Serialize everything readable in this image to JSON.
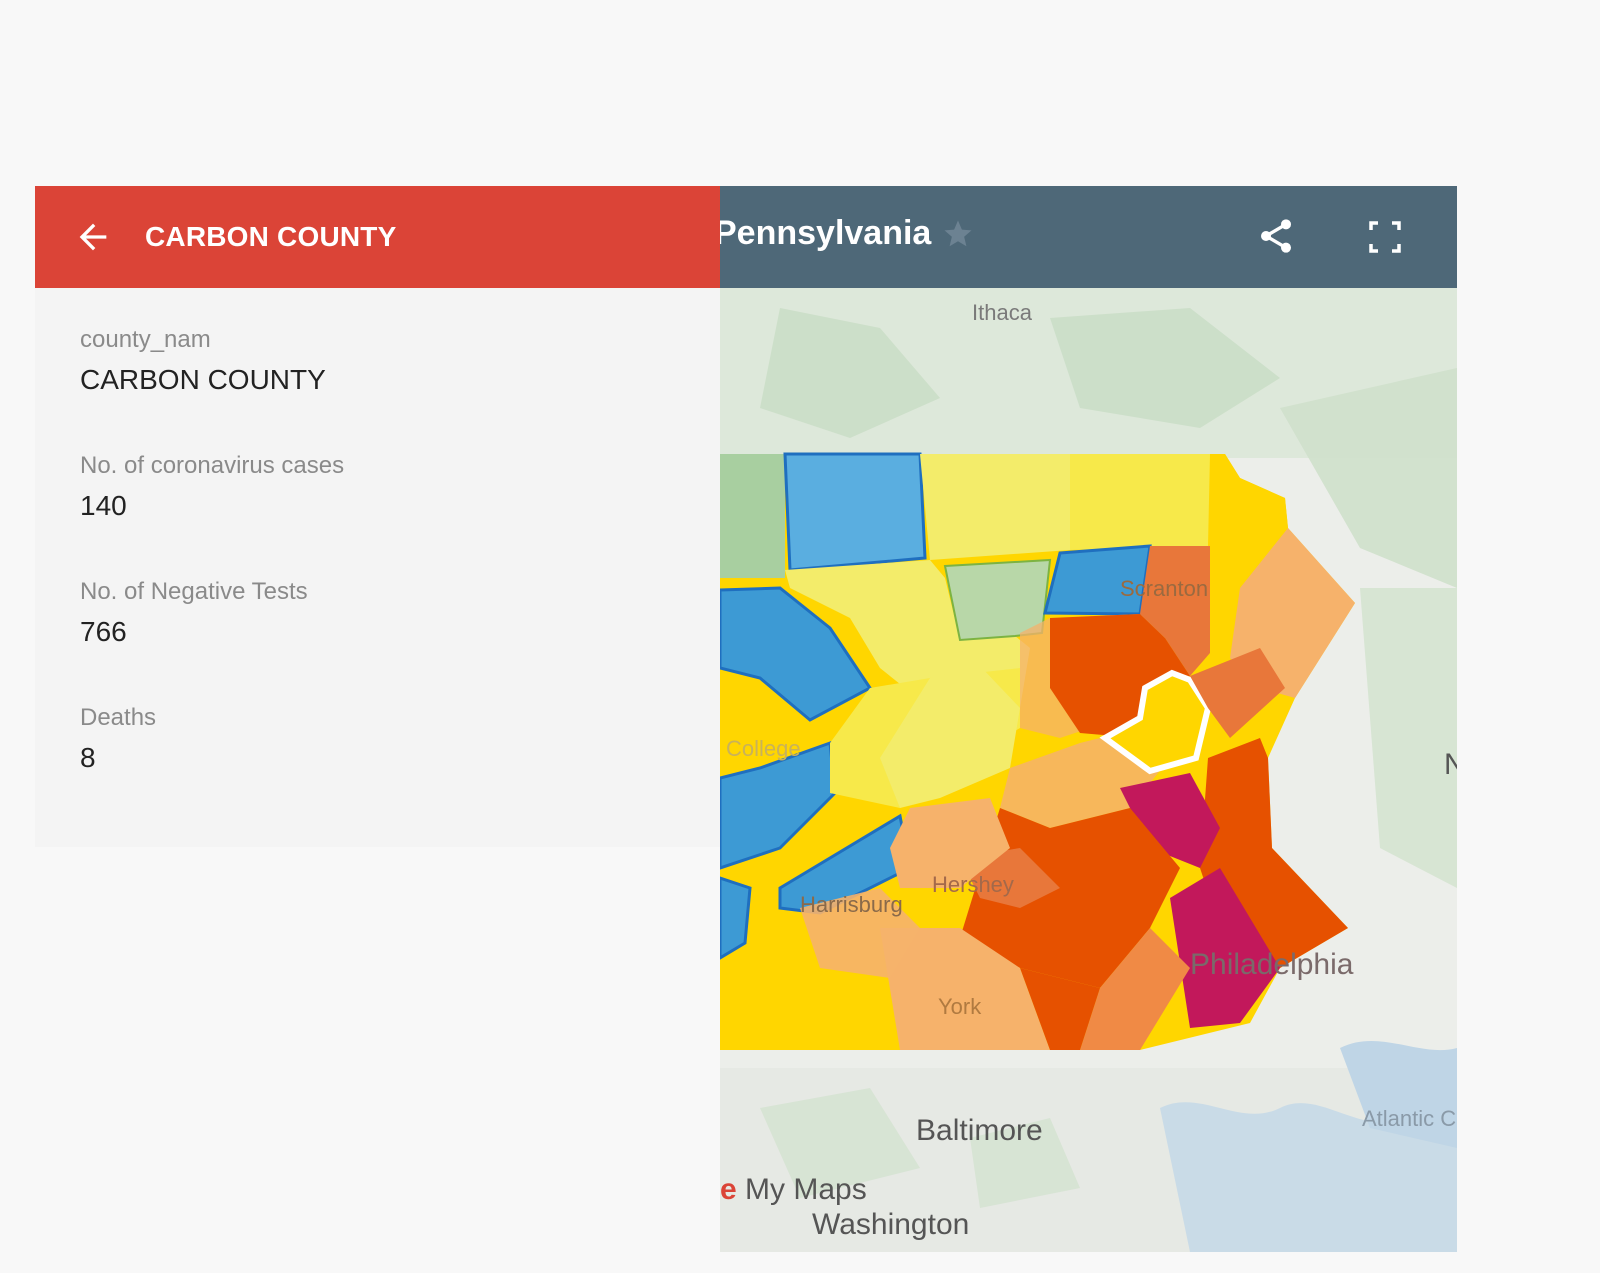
{
  "info_panel": {
    "title": "CARBON COUNTY",
    "fields": [
      {
        "label": "county_nam",
        "value": "CARBON COUNTY"
      },
      {
        "label": "No. of coronavirus cases",
        "value": "140"
      },
      {
        "label": "No. of Negative Tests",
        "value": "766"
      },
      {
        "label": "Deaths",
        "value": "8"
      }
    ],
    "accent": "#db4437"
  },
  "map_header": {
    "title": "Pennsylvania",
    "icons": [
      "star-icon",
      "share-icon",
      "fullscreen-icon"
    ],
    "background": "#4e6878"
  },
  "map": {
    "labels": {
      "ithaca": "Ithaca",
      "scranton": "Scranton",
      "state_college": "College",
      "hershey": "Hershey",
      "harrisburg": "Harrisburg",
      "york": "York",
      "philadelphia": "Philadelphia",
      "baltimore": "Baltimore",
      "washington": "Washington",
      "atlantic": "Atlantic C",
      "edge_n": "N"
    },
    "brand": {
      "g": "e",
      "text": " My Maps"
    },
    "legend_colors": {
      "blue": "#3d9ad4",
      "green": "#a8cfa0",
      "light_yellow": "#f3ec6a",
      "yellow": "#ffd600",
      "light_orange": "#f6b26b",
      "orange": "#e8773a",
      "dark_orange": "#e65100",
      "magenta": "#c2185b"
    }
  }
}
